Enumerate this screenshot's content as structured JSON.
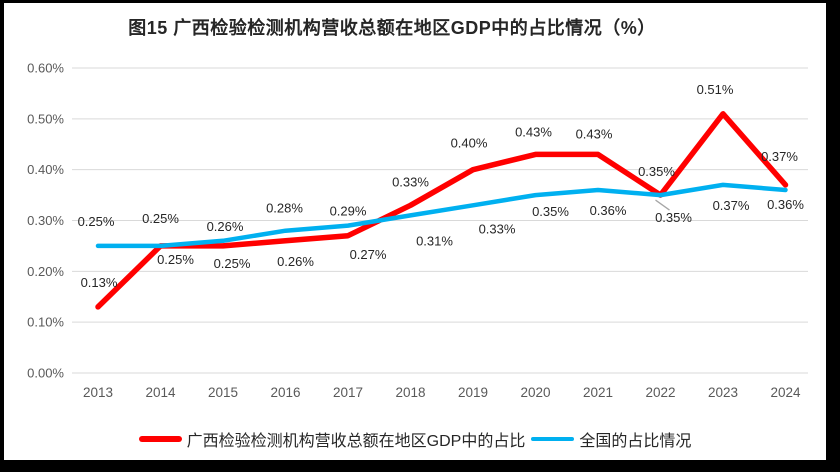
{
  "chart": {
    "title": "图15 广西检验检测机构营收总额在地区GDP中的占比情况（%）"
  },
  "chart_data": {
    "type": "line",
    "title": "图15 广西检验检测机构营收总额在地区GDP中的占比情况（%）",
    "categories": [
      "2013",
      "2014",
      "2015",
      "2016",
      "2017",
      "2018",
      "2019",
      "2020",
      "2021",
      "2022",
      "2023",
      "2024"
    ],
    "y_axis": {
      "min": 0,
      "max": 0.6,
      "step": 0.1,
      "tick_labels": [
        "0.00%",
        "0.10%",
        "0.20%",
        "0.30%",
        "0.40%",
        "0.50%",
        "0.60%"
      ],
      "unit": "%"
    },
    "grid": true,
    "legend_position": "bottom",
    "series": [
      {
        "name": "广西检验检测机构营收总额在地区GDP中的占比",
        "color": "#FF0000",
        "line_width": 5.5,
        "values": [
          0.13,
          0.25,
          0.25,
          0.26,
          0.27,
          0.33,
          0.4,
          0.43,
          0.43,
          0.35,
          0.51,
          0.37
        ],
        "data_labels": [
          "0.13%",
          "0.25%",
          "0.25%",
          "0.26%",
          "0.27%",
          "0.33%",
          "0.40%",
          "0.43%",
          "0.43%",
          "0.35%",
          "0.51%",
          "0.37%"
        ],
        "label_offsets": [
          [
            1,
            -20
          ],
          [
            15,
            18
          ],
          [
            9,
            22
          ],
          [
            10,
            25
          ],
          [
            20,
            23
          ],
          [
            0,
            -19
          ],
          [
            -4,
            -22
          ],
          [
            -2,
            -18
          ],
          [
            -4,
            -16
          ],
          [
            13,
            27
          ],
          [
            -8,
            -20
          ],
          [
            -6,
            -24
          ]
        ]
      },
      {
        "name": "全国的占比情况",
        "color": "#00B0F0",
        "line_width": 4.5,
        "values": [
          0.25,
          0.25,
          0.26,
          0.28,
          0.29,
          0.31,
          0.33,
          0.35,
          0.36,
          0.35,
          0.37,
          0.36
        ],
        "data_labels": [
          "0.25%",
          "0.25%",
          "0.26%",
          "0.28%",
          "0.29%",
          "0.31%",
          "0.33%",
          "0.35%",
          "0.36%",
          "0.35%",
          "0.37%",
          "0.36%"
        ],
        "label_offsets": [
          [
            -2,
            -20
          ],
          [
            0,
            -23
          ],
          [
            2,
            -10
          ],
          [
            -1,
            -18
          ],
          [
            0,
            -10
          ],
          [
            24,
            30
          ],
          [
            24,
            28
          ],
          [
            15,
            21
          ],
          [
            10,
            25
          ],
          [
            -4,
            -19
          ],
          [
            8,
            25
          ],
          [
            0,
            19
          ]
        ]
      }
    ],
    "annotations": {
      "leader_line": {
        "series": 0,
        "category": "2022",
        "color": "#A6A6A6"
      }
    },
    "colors": {
      "gridline": "#D9D9D9",
      "tick_text": "#595959",
      "data_label_text": "#262626",
      "title_text": "#262626",
      "frame_border": "#000000",
      "background": "#FFFFFF"
    }
  }
}
